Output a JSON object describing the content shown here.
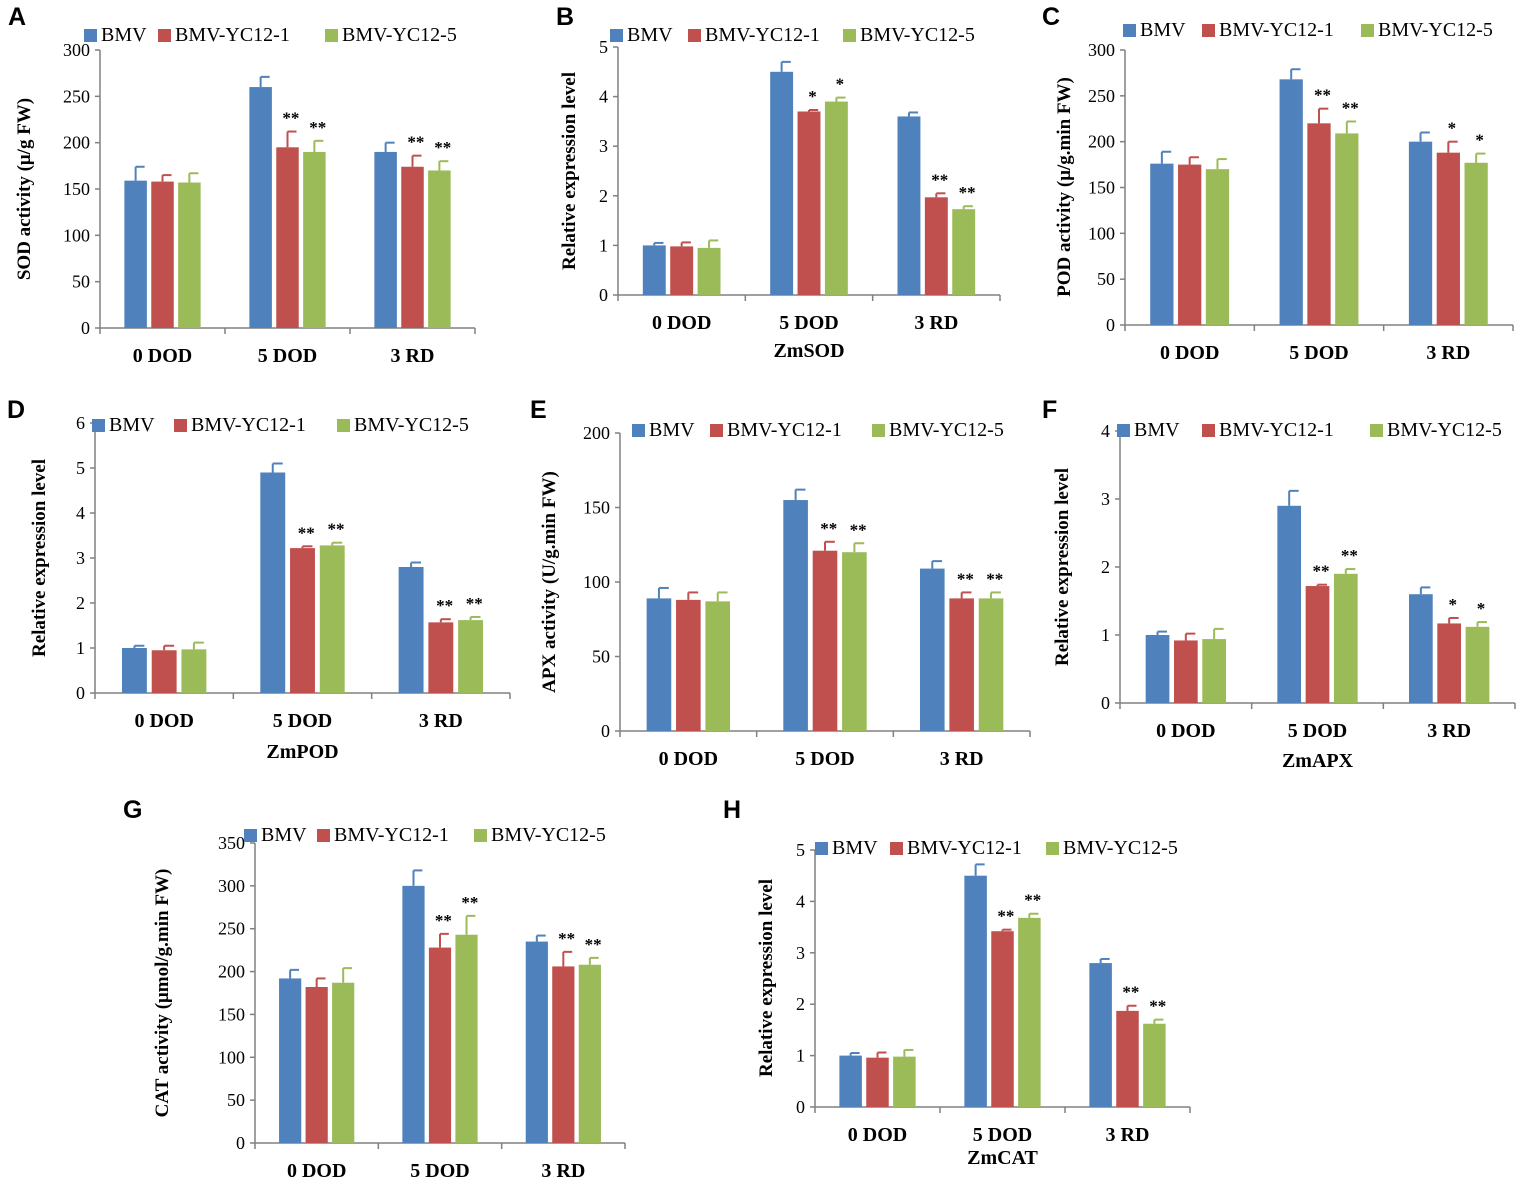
{
  "figure": {
    "colors": {
      "BMV": "#4f81bd",
      "BMV-YC12-1": "#c0504d",
      "BMV-YC12-5": "#9bbb59"
    }
  },
  "chart_data": [
    {
      "panel": "A",
      "type": "bar",
      "categories": [
        "0 DOD",
        "5 DOD",
        "3 RD"
      ],
      "series": [
        {
          "name": "BMV",
          "values": [
            159,
            260,
            190
          ],
          "errors": [
            15,
            11,
            10
          ],
          "sig": [
            "",
            "",
            ""
          ]
        },
        {
          "name": "BMV-YC12-1",
          "values": [
            158,
            195,
            174
          ],
          "errors": [
            7,
            17,
            12
          ],
          "sig": [
            "",
            "**",
            "**"
          ]
        },
        {
          "name": "BMV-YC12-5",
          "values": [
            157,
            190,
            170
          ],
          "errors": [
            10,
            12,
            10
          ],
          "sig": [
            "",
            "**",
            "**"
          ]
        }
      ],
      "ylabel": "SOD activity (μ/g FW)",
      "xlabel": "",
      "ylim": [
        0,
        300
      ],
      "yticks": [
        "0",
        "50",
        "100",
        "150",
        "200",
        "250",
        "300"
      ]
    },
    {
      "panel": "B",
      "type": "bar",
      "categories": [
        "0 DOD",
        "5 DOD",
        "3 RD"
      ],
      "series": [
        {
          "name": "BMV",
          "values": [
            1.0,
            4.5,
            3.6
          ],
          "errors": [
            0.05,
            0.2,
            0.08
          ],
          "sig": [
            "",
            "",
            ""
          ]
        },
        {
          "name": "BMV-YC12-1",
          "values": [
            0.98,
            3.7,
            1.97
          ],
          "errors": [
            0.08,
            0.03,
            0.08
          ],
          "sig": [
            "",
            "*",
            "**"
          ]
        },
        {
          "name": "BMV-YC12-5",
          "values": [
            0.95,
            3.9,
            1.73
          ],
          "errors": [
            0.15,
            0.08,
            0.06
          ],
          "sig": [
            "",
            "*",
            "**"
          ]
        }
      ],
      "ylabel": "Relative expression level",
      "xlabel": "ZmSOD",
      "ylim": [
        0,
        5
      ],
      "yticks": [
        "0",
        "1",
        "2",
        "3",
        "4",
        "5"
      ]
    },
    {
      "panel": "C",
      "type": "bar",
      "categories": [
        "0 DOD",
        "5 DOD",
        "3 RD"
      ],
      "series": [
        {
          "name": "BMV",
          "values": [
            176,
            268,
            200
          ],
          "errors": [
            13,
            11,
            10
          ],
          "sig": [
            "",
            "",
            ""
          ]
        },
        {
          "name": "BMV-YC12-1",
          "values": [
            175,
            220,
            188
          ],
          "errors": [
            8,
            16,
            12
          ],
          "sig": [
            "",
            "**",
            "*"
          ]
        },
        {
          "name": "BMV-YC12-5",
          "values": [
            170,
            209,
            177
          ],
          "errors": [
            11,
            13,
            10
          ],
          "sig": [
            "",
            "**",
            "*"
          ]
        }
      ],
      "ylabel": "POD  activity (μ/g.min FW)",
      "xlabel": "",
      "ylim": [
        0,
        300
      ],
      "yticks": [
        "0",
        "50",
        "100",
        "150",
        "200",
        "250",
        "300"
      ]
    },
    {
      "panel": "D",
      "type": "bar",
      "categories": [
        "0 DOD",
        "5 DOD",
        "3 RD"
      ],
      "series": [
        {
          "name": "BMV",
          "values": [
            1.0,
            4.9,
            2.8
          ],
          "errors": [
            0.05,
            0.2,
            0.1
          ],
          "sig": [
            "",
            "",
            ""
          ]
        },
        {
          "name": "BMV-YC12-1",
          "values": [
            0.95,
            3.22,
            1.57
          ],
          "errors": [
            0.1,
            0.04,
            0.07
          ],
          "sig": [
            "",
            "**",
            "**"
          ]
        },
        {
          "name": "BMV-YC12-5",
          "values": [
            0.97,
            3.28,
            1.62
          ],
          "errors": [
            0.15,
            0.06,
            0.07
          ],
          "sig": [
            "",
            "**",
            "**"
          ]
        }
      ],
      "ylabel": "Relative expression level",
      "xlabel": "ZmPOD",
      "ylim": [
        0,
        6
      ],
      "yticks": [
        "0",
        "1",
        "2",
        "3",
        "4",
        "5",
        "6"
      ]
    },
    {
      "panel": "E",
      "type": "bar",
      "categories": [
        "0 DOD",
        "5 DOD",
        "3 RD"
      ],
      "series": [
        {
          "name": "BMV",
          "values": [
            89,
            155,
            109
          ],
          "errors": [
            7,
            7,
            5
          ],
          "sig": [
            "",
            "",
            ""
          ]
        },
        {
          "name": "BMV-YC12-1",
          "values": [
            88,
            121,
            89
          ],
          "errors": [
            5,
            6,
            4
          ],
          "sig": [
            "",
            "**",
            "**"
          ]
        },
        {
          "name": "BMV-YC12-5",
          "values": [
            87,
            120,
            89
          ],
          "errors": [
            6,
            6,
            4
          ],
          "sig": [
            "",
            "**",
            "**"
          ]
        }
      ],
      "ylabel": "APX activity (U/g.min FW)",
      "xlabel": "",
      "ylim": [
        0,
        200
      ],
      "yticks": [
        "0",
        "50",
        "100",
        "150",
        "200"
      ]
    },
    {
      "panel": "F",
      "type": "bar",
      "categories": [
        "0 DOD",
        "5 DOD",
        "3 RD"
      ],
      "series": [
        {
          "name": "BMV",
          "values": [
            1.0,
            2.9,
            1.6
          ],
          "errors": [
            0.05,
            0.22,
            0.1
          ],
          "sig": [
            "",
            "",
            ""
          ]
        },
        {
          "name": "BMV-YC12-1",
          "values": [
            0.92,
            1.72,
            1.17
          ],
          "errors": [
            0.1,
            0.02,
            0.08
          ],
          "sig": [
            "",
            "**",
            "*"
          ]
        },
        {
          "name": "BMV-YC12-5",
          "values": [
            0.94,
            1.9,
            1.12
          ],
          "errors": [
            0.15,
            0.07,
            0.07
          ],
          "sig": [
            "",
            "**",
            "*"
          ]
        }
      ],
      "ylabel": "Relative expression level",
      "xlabel": "ZmAPX",
      "ylim": [
        0,
        4
      ],
      "yticks": [
        "0",
        "1",
        "2",
        "3",
        "4"
      ]
    },
    {
      "panel": "G",
      "type": "bar",
      "categories": [
        "0 DOD",
        "5 DOD",
        "3 RD"
      ],
      "series": [
        {
          "name": "BMV",
          "values": [
            192,
            300,
            235
          ],
          "errors": [
            10,
            18,
            7
          ],
          "sig": [
            "",
            "",
            ""
          ]
        },
        {
          "name": "BMV-YC12-1",
          "values": [
            182,
            228,
            206
          ],
          "errors": [
            10,
            16,
            17
          ],
          "sig": [
            "",
            "**",
            "**"
          ]
        },
        {
          "name": "BMV-YC12-5",
          "values": [
            187,
            243,
            208
          ],
          "errors": [
            17,
            22,
            8
          ],
          "sig": [
            "",
            "**",
            "**"
          ]
        }
      ],
      "ylabel": "CAT activity (μmol/g.min FW)",
      "xlabel": "",
      "ylim": [
        0,
        350
      ],
      "yticks": [
        "0",
        "50",
        "100",
        "150",
        "200",
        "250",
        "300",
        "350"
      ]
    },
    {
      "panel": "H",
      "type": "bar",
      "categories": [
        "0 DOD",
        "5 DOD",
        "3 RD"
      ],
      "series": [
        {
          "name": "BMV",
          "values": [
            1.0,
            4.5,
            2.8
          ],
          "errors": [
            0.05,
            0.22,
            0.08
          ],
          "sig": [
            "",
            "",
            ""
          ]
        },
        {
          "name": "BMV-YC12-1",
          "values": [
            0.96,
            3.42,
            1.87
          ],
          "errors": [
            0.1,
            0.03,
            0.1
          ],
          "sig": [
            "",
            "**",
            "**"
          ]
        },
        {
          "name": "BMV-YC12-5",
          "values": [
            0.98,
            3.68,
            1.62
          ],
          "errors": [
            0.13,
            0.08,
            0.08
          ],
          "sig": [
            "",
            "**",
            "**"
          ]
        }
      ],
      "ylabel": "Relative expression level",
      "xlabel": "ZmCAT",
      "ylim": [
        0,
        5
      ],
      "yticks": [
        "0",
        "1",
        "2",
        "3",
        "4",
        "5"
      ]
    }
  ]
}
